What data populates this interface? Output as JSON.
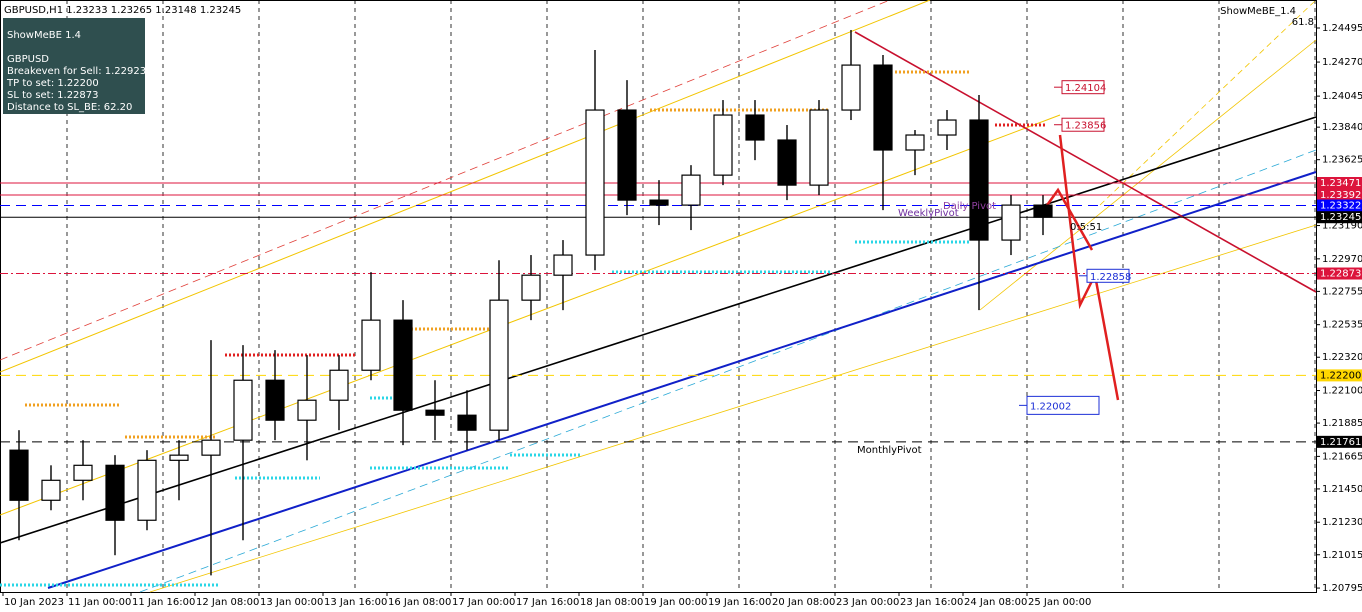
{
  "chart_data": {
    "type": "candlestick",
    "title": "GBPUSD,H1 1.23233 1.23265 1.23148 1.23245",
    "indicator_name": "ShowMeBE_1.4",
    "fib_label": "61.8",
    "panel": [
      "ShowMeBE 1.4",
      "GBPUSD",
      "Breakeven for Sell: 1.22923",
      "TP to set: 1.22200",
      "SL to set: 1.22873",
      "Distance to SL_BE: 62.20"
    ],
    "categories": [
      "10 Jan 2023",
      null,
      "11 Jan 00:00",
      null,
      "11 Jan 16:00",
      null,
      "12 Jan 08:00",
      null,
      "13 Jan 00:00",
      null,
      "13 Jan 16:00",
      null,
      "16 Jan 08:00",
      null,
      "17 Jan 00:00",
      null,
      "17 Jan 16:00",
      null,
      "18 Jan 08:00",
      null,
      "19 Jan 00:00",
      null,
      "19 Jan 16:00",
      null,
      "20 Jan 08:00",
      null,
      "23 Jan 00:00",
      null,
      "23 Jan 16:00",
      null,
      "24 Jan 08:00",
      null,
      "25 Jan 00:00"
    ],
    "open": [
      1.21706,
      1.21375,
      1.21507,
      1.21606,
      1.21243,
      1.21639,
      1.21673,
      1.21772,
      1.22168,
      1.21904,
      1.22036,
      1.22234,
      1.22565,
      1.2197,
      1.21937,
      1.21838,
      1.22697,
      1.22862,
      1.22995,
      1.23953,
      1.23358,
      1.23325,
      1.23523,
      1.2392,
      1.23755,
      1.23457,
      1.23953,
      1.2425,
      1.23689,
      1.23788,
      1.23887,
      1.23094,
      1.23325
    ],
    "high": [
      1.21838,
      1.21606,
      1.21772,
      1.21673,
      1.21706,
      1.21772,
      1.22433,
      1.224,
      1.22367,
      1.22334,
      1.22334,
      1.22882,
      1.22697,
      1.22168,
      1.22102,
      1.22961,
      1.22995,
      1.23094,
      1.2435,
      1.24151,
      1.2349,
      1.23589,
      1.24019,
      1.24019,
      1.23854,
      1.24019,
      1.24482,
      1.24317,
      1.23821,
      1.23953,
      1.24052,
      1.23391,
      1.23391
    ],
    "low": [
      1.21111,
      1.21309,
      1.21375,
      1.21012,
      1.21177,
      1.21375,
      1.20879,
      1.21111,
      1.21772,
      1.21639,
      1.21838,
      1.22168,
      1.21739,
      1.21772,
      1.21706,
      1.21772,
      1.22565,
      1.22631,
      1.22895,
      1.23259,
      1.23193,
      1.2316,
      1.23457,
      1.23622,
      1.23358,
      1.23391,
      1.23887,
      1.23292,
      1.23523,
      1.23689,
      1.22631,
      1.22995,
      1.23127
    ],
    "close": [
      1.21375,
      1.21507,
      1.21606,
      1.21243,
      1.21639,
      1.21673,
      1.21772,
      1.22168,
      1.21904,
      1.22036,
      1.22234,
      1.22565,
      1.2197,
      1.21937,
      1.21838,
      1.22697,
      1.22862,
      1.22995,
      1.23953,
      1.23358,
      1.23325,
      1.23523,
      1.2392,
      1.23755,
      1.23457,
      1.23953,
      1.2425,
      1.23689,
      1.23788,
      1.23887,
      1.23094,
      1.23325,
      1.23245
    ],
    "ylim": [
      1.20769,
      1.2468
    ],
    "yticks": [
      {
        "value": 1.24495,
        "label": "1.24495"
      },
      {
        "value": 1.2427,
        "label": "1.24270"
      },
      {
        "value": 1.24045,
        "label": "1.24045"
      },
      {
        "value": 1.2384,
        "label": "1.23840"
      },
      {
        "value": 1.23625,
        "label": "1.23625"
      },
      {
        "value": 1.2319,
        "label": "1.23190"
      },
      {
        "value": 1.2297,
        "label": "1.22970"
      },
      {
        "value": 1.22755,
        "label": "1.22755"
      },
      {
        "value": 1.22535,
        "label": "1.22535"
      },
      {
        "value": 1.2232,
        "label": "1.22320"
      },
      {
        "value": 1.221,
        "label": "1.22100"
      },
      {
        "value": 1.21885,
        "label": "1.21885"
      },
      {
        "value": 1.21665,
        "label": "1.21665"
      },
      {
        "value": 1.2145,
        "label": "1.21450"
      },
      {
        "value": 1.2123,
        "label": "1.21230"
      },
      {
        "value": 1.21015,
        "label": "1.21015"
      },
      {
        "value": 1.20795,
        "label": "1.20795"
      }
    ],
    "levels": [
      {
        "value": 1.23471,
        "label": "1.23471",
        "color": "#dc143c",
        "style": "solid"
      },
      {
        "value": 1.23392,
        "label": "1.23392",
        "color": "#dc143c",
        "style": "solid"
      },
      {
        "value": 1.23322,
        "label": "1.23322",
        "color": "#0000ff",
        "style": "dashed"
      },
      {
        "value": 1.23245,
        "label": "1.23245",
        "color": "#000000",
        "style": "solid"
      },
      {
        "value": 1.22873,
        "label": "1.22873",
        "color": "#dc143c",
        "style": "dashdot"
      },
      {
        "value": 1.222,
        "label": "1.22200",
        "color": "#ffd700",
        "style": "dashed"
      },
      {
        "value": 1.21761,
        "label": "1.21761",
        "color": "#000000",
        "style": "dashed"
      }
    ],
    "annotations": [
      {
        "value": 1.24104,
        "label": "1.24104",
        "color": "#c8102e"
      },
      {
        "value": 1.23856,
        "label": "1.23856",
        "color": "#c8102e"
      },
      {
        "value": 1.22858,
        "label": "1.22858",
        "color": "#1c2fd6"
      },
      {
        "value": 1.22002,
        "label": "1.22002",
        "color": "#1c2fd6"
      }
    ],
    "pivots": [
      "WeeklyPivot",
      "Daily Pivot",
      "MonthlyPivot"
    ],
    "timer": "0:5:51"
  }
}
